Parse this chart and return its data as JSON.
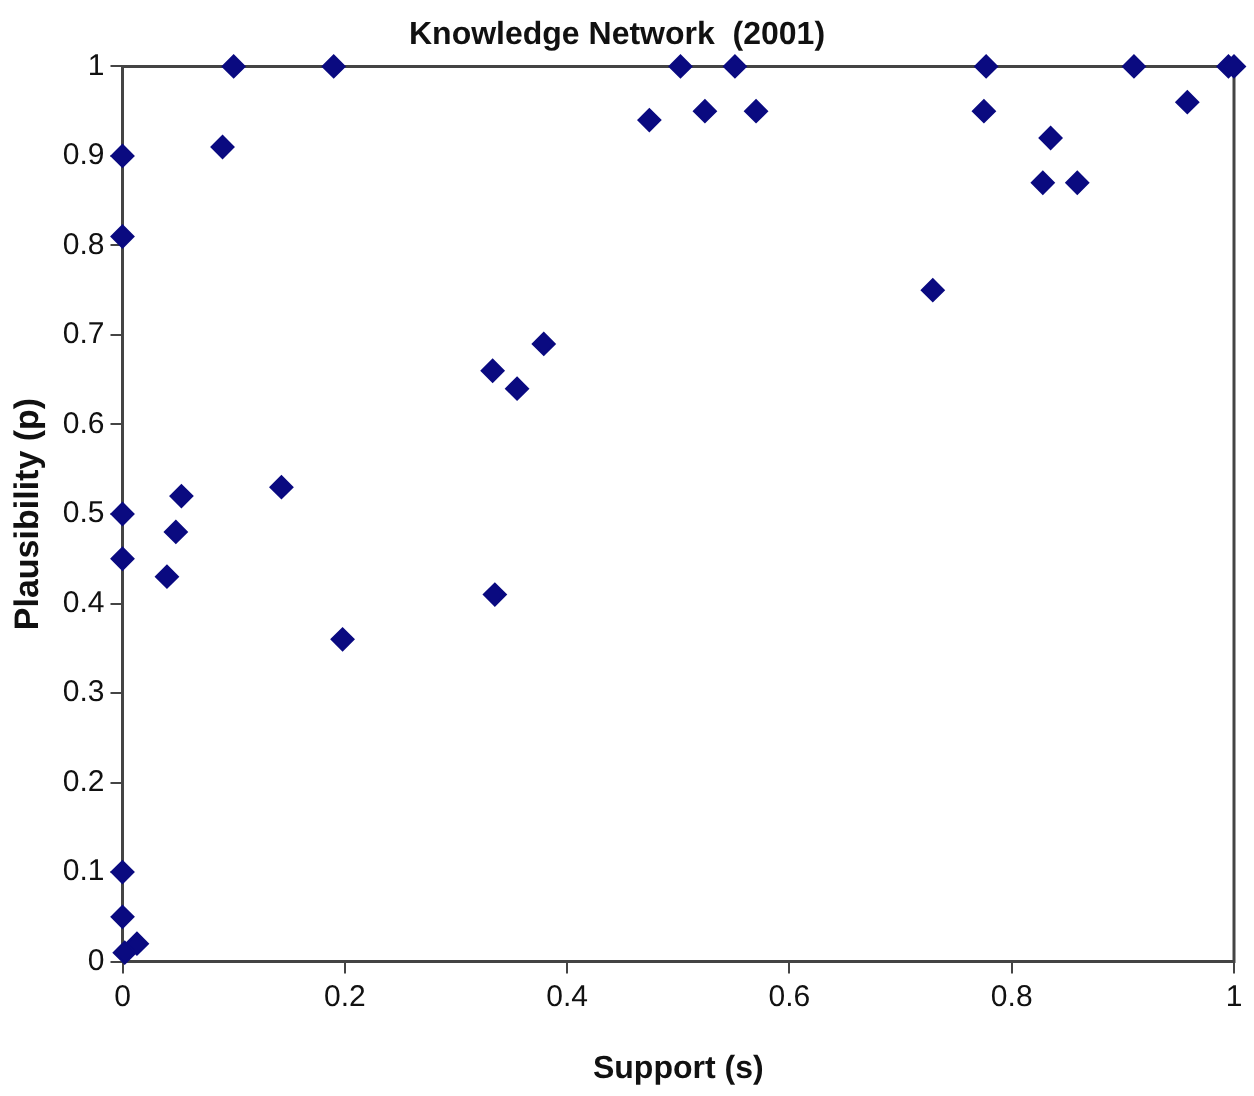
{
  "chart_data": {
    "type": "scatter",
    "title": "Knowledge Network  (2001)",
    "xlabel": "Support (s)",
    "ylabel": "Plausibility (p)",
    "xlim": [
      0,
      1
    ],
    "ylim": [
      0,
      1
    ],
    "xticks": [
      0,
      0.2,
      0.4,
      0.6,
      0.8,
      1
    ],
    "yticks": [
      0,
      0.1,
      0.2,
      0.3,
      0.4,
      0.5,
      0.6,
      0.7,
      0.8,
      0.9,
      1
    ],
    "grid": false,
    "legend": false,
    "marker": "diamond",
    "series": [
      {
        "color": "#0a0a80",
        "x": [
          0,
          0,
          0,
          0,
          0,
          0,
          0.013,
          0.002,
          0.04,
          0.048,
          0.053,
          0.09,
          0.1,
          0.143,
          0.19,
          0.198,
          0.333,
          0.335,
          0.355,
          0.379,
          0.474,
          0.502,
          0.524,
          0.551,
          0.57,
          0.729,
          0.775,
          0.777,
          0.828,
          0.835,
          0.859,
          0.91,
          0.958,
          0.995,
          1
        ],
        "values": [
          0.9,
          0.81,
          0.5,
          0.45,
          0.1,
          0.05,
          0.02,
          0.01,
          0.43,
          0.48,
          0.52,
          0.91,
          1,
          0.53,
          1,
          0.36,
          0.66,
          0.41,
          0.64,
          0.69,
          0.94,
          1,
          0.95,
          1,
          0.95,
          0.75,
          0.95,
          1,
          0.87,
          0.92,
          0.87,
          1,
          0.96,
          1,
          1
        ]
      }
    ]
  }
}
